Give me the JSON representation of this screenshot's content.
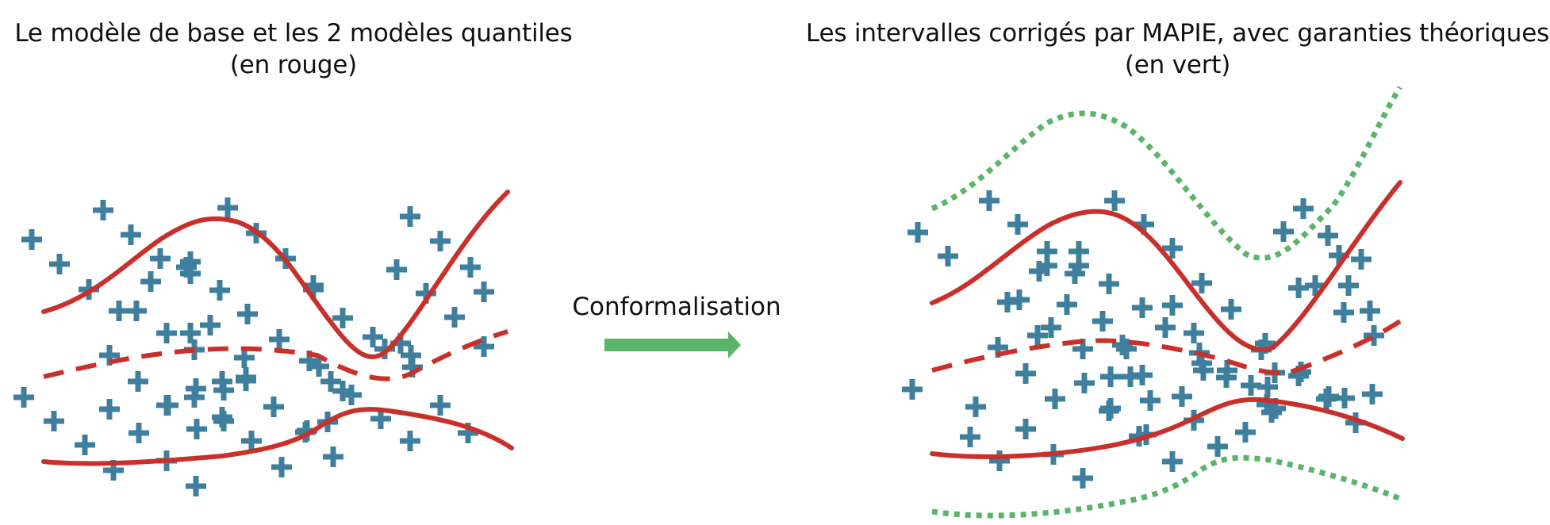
{
  "titles": {
    "left": {
      "line1": "Le modèle de base et les 2 modèles quantiles",
      "line2": "(en rouge)"
    },
    "right": {
      "line1": "Les intervalles corrigés par MAPIE, avec garanties théoriques",
      "line2": "(en vert)"
    }
  },
  "arrow": {
    "label": "Conformalisation"
  },
  "colors": {
    "points": "#3d7f9c",
    "model_curves": "#c9302c",
    "mapie_intervals": "#5ab46a",
    "arrow": "#5ab46a"
  }
}
